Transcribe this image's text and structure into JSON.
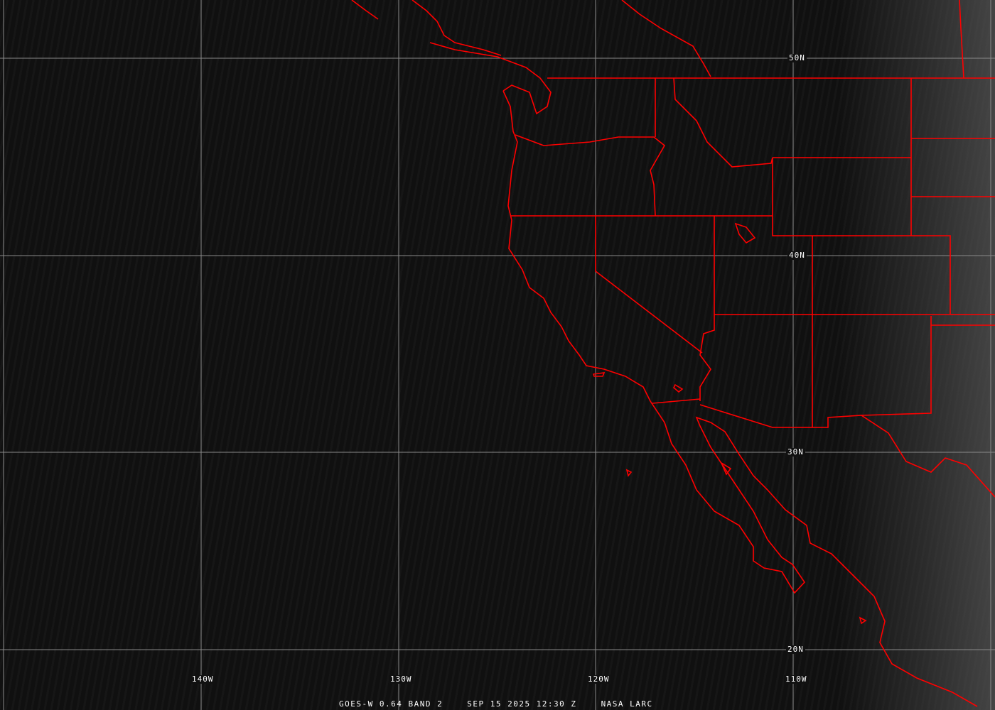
{
  "map": {
    "type": "satellite image",
    "colors": {
      "borders": "#ff0000",
      "grid": "#8a8a8a",
      "labels": "#ffffff"
    },
    "latitude_labels": [
      "50N",
      "40N",
      "30N",
      "20N"
    ],
    "longitude_labels": [
      "140W",
      "130W",
      "120W",
      "110W"
    ]
  },
  "caption": {
    "satellite": "GOES-W 0.64 BAND 2",
    "datetime": "SEP 15 2025 12:30 Z",
    "source": "NASA LARC"
  }
}
